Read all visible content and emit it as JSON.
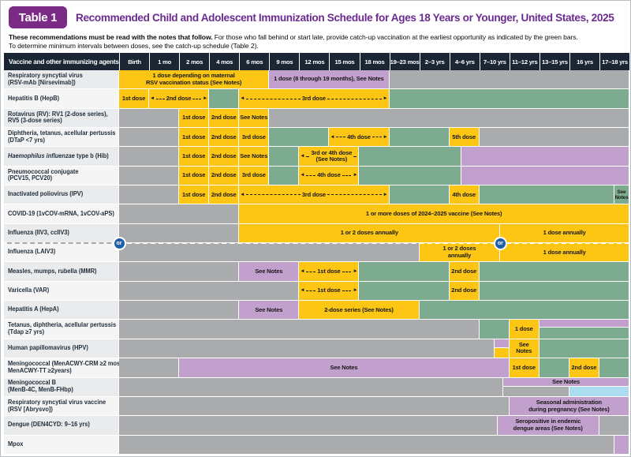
{
  "header": {
    "badge": "Table 1",
    "title": "Recommended Child and Adolescent Immunization Schedule for Ages 18 Years or Younger, United States, 2025"
  },
  "notes": {
    "line1_bold": "These recommendations must be read with the notes that follow.",
    "line1_rest": " For those who fall behind or start late, provide catch-up vaccination at the earliest opportunity as indicated by the green bars.",
    "line2": "To determine minimum intervals between doses, see the catch-up schedule (Table 2)."
  },
  "colors": {
    "yellow": "#FDC614",
    "green": "#7DAB8F",
    "purple": "#C2A0CD",
    "gray": "#A9ABAD",
    "blue": "#ABDCF1",
    "header_bg": "#1A2633",
    "badge_purple": "#7B2B85",
    "title_purple": "#6B2C91",
    "or_blue": "#1F5FA7"
  },
  "table": {
    "corner_header": "Vaccine and other immunizing agents",
    "age_columns": [
      "Birth",
      "1 mo",
      "2 mos",
      "4 mos",
      "6 mos",
      "9 mos",
      "12 mos",
      "15 mos",
      "18 mos",
      "19–23 mos",
      "2–3 yrs",
      "4–6 yrs",
      "7–10 yrs",
      "11–12 yrs",
      "13–15 yrs",
      "16 yrs",
      "17–18 yrs"
    ],
    "or_label": "or",
    "or_divider": {
      "after_row": 9,
      "circle_units": [
        0,
        12.7
      ]
    },
    "rows": [
      {
        "id": "rsv-mab",
        "label": [
          "Respiratory syncytial virus",
          "(RSV-mAb [Nirsevimab])"
        ],
        "segments": [
          {
            "s": 0,
            "e": 5,
            "c": "y",
            "label": "1 dose depending on maternal\nRSV vaccination status (See Notes)"
          },
          {
            "s": 5,
            "e": 9,
            "c": "p",
            "label": "1 dose (8 through 19 months), See Notes"
          },
          {
            "s": 9,
            "e": 17,
            "c": "g"
          }
        ]
      },
      {
        "id": "hepb",
        "label": [
          "Hepatitis B (HepB)"
        ],
        "segments": [
          {
            "s": 0,
            "e": 1,
            "c": "y",
            "label": "1st dose"
          },
          {
            "s": 1,
            "e": 3,
            "c": "y",
            "label": "2nd dose",
            "arrow": true
          },
          {
            "s": 3,
            "e": 4,
            "c": "t"
          },
          {
            "s": 4,
            "e": 9,
            "c": "y",
            "label": "3rd dose",
            "arrow": true
          },
          {
            "s": 9,
            "e": 17,
            "c": "t"
          }
        ]
      },
      {
        "id": "rotavirus",
        "label": [
          "Rotavirus (RV): RV1 (2-dose series),",
          "RV5 (3-dose series)"
        ],
        "segments": [
          {
            "s": 0,
            "e": 2,
            "c": "g"
          },
          {
            "s": 2,
            "e": 3,
            "c": "y",
            "label": "1st dose"
          },
          {
            "s": 3,
            "e": 4,
            "c": "y",
            "label": "2nd dose"
          },
          {
            "s": 4,
            "e": 5,
            "c": "y",
            "label": "See Notes"
          },
          {
            "s": 5,
            "e": 17,
            "c": "g"
          }
        ]
      },
      {
        "id": "dtap",
        "label": [
          "Diphtheria, tetanus, acellular pertussis",
          "(DTaP <7 yrs)"
        ],
        "segments": [
          {
            "s": 0,
            "e": 2,
            "c": "g"
          },
          {
            "s": 2,
            "e": 3,
            "c": "y",
            "label": "1st dose"
          },
          {
            "s": 3,
            "e": 4,
            "c": "y",
            "label": "2nd dose"
          },
          {
            "s": 4,
            "e": 5,
            "c": "y",
            "label": "3rd dose"
          },
          {
            "s": 5,
            "e": 7,
            "c": "t"
          },
          {
            "s": 7,
            "e": 9,
            "c": "y",
            "label": "4th dose",
            "arrow": true
          },
          {
            "s": 9,
            "e": 11,
            "c": "t"
          },
          {
            "s": 11,
            "e": 12,
            "c": "y",
            "label": "5th dose"
          },
          {
            "s": 12,
            "e": 17,
            "c": "g"
          }
        ]
      },
      {
        "id": "hib",
        "label": [
          {
            "italic": "Haemophilus influenzae",
            "text": " type b (Hib)"
          }
        ],
        "segments": [
          {
            "s": 0,
            "e": 2,
            "c": "g"
          },
          {
            "s": 2,
            "e": 3,
            "c": "y",
            "label": "1st dose"
          },
          {
            "s": 3,
            "e": 4,
            "c": "y",
            "label": "2nd dose"
          },
          {
            "s": 4,
            "e": 5,
            "c": "y",
            "label": "See Notes"
          },
          {
            "s": 5,
            "e": 6,
            "c": "t"
          },
          {
            "s": 6,
            "e": 8,
            "c": "y",
            "label": "3rd or 4th dose\n(See Notes)",
            "arrow": true
          },
          {
            "s": 8,
            "e": 11.4,
            "c": "t"
          },
          {
            "s": 11.4,
            "e": 17,
            "c": "p"
          }
        ]
      },
      {
        "id": "pcv",
        "label": [
          "Pneumococcal conjugate",
          "(PCV15, PCV20)"
        ],
        "segments": [
          {
            "s": 0,
            "e": 2,
            "c": "g"
          },
          {
            "s": 2,
            "e": 3,
            "c": "y",
            "label": "1st dose"
          },
          {
            "s": 3,
            "e": 4,
            "c": "y",
            "label": "2nd dose"
          },
          {
            "s": 4,
            "e": 5,
            "c": "y",
            "label": "3rd dose"
          },
          {
            "s": 5,
            "e": 6,
            "c": "t"
          },
          {
            "s": 6,
            "e": 8,
            "c": "y",
            "label": "4th dose",
            "arrow": true
          },
          {
            "s": 8,
            "e": 11.4,
            "c": "t"
          },
          {
            "s": 11.4,
            "e": 17,
            "c": "p"
          }
        ]
      },
      {
        "id": "ipv",
        "label": [
          "Inactivated poliovirus (IPV)"
        ],
        "segments": [
          {
            "s": 0,
            "e": 2,
            "c": "g"
          },
          {
            "s": 2,
            "e": 3,
            "c": "y",
            "label": "1st dose"
          },
          {
            "s": 3,
            "e": 4,
            "c": "y",
            "label": "2nd dose"
          },
          {
            "s": 4,
            "e": 9,
            "c": "y",
            "label": "3rd dose",
            "arrow": true
          },
          {
            "s": 9,
            "e": 11,
            "c": "t"
          },
          {
            "s": 11,
            "e": 12,
            "c": "y",
            "label": "4th dose"
          },
          {
            "s": 12,
            "e": 16.5,
            "c": "t"
          },
          {
            "s": 16.5,
            "e": 17,
            "c": "t",
            "label": "See\nNotes",
            "small": true
          }
        ]
      },
      {
        "id": "covid19",
        "label": [
          "COVID-19 (1vCOV-mRNA, 1vCOV-aPS)"
        ],
        "segments": [
          {
            "s": 0,
            "e": 4,
            "c": "g"
          },
          {
            "s": 4,
            "e": 17,
            "c": "y",
            "label": "1 or more doses of 2024–2025 vaccine (See Notes)"
          }
        ]
      },
      {
        "id": "influenza-iiv3",
        "label": [
          "Influenza (IIV3, ccIIV3)"
        ],
        "segments": [
          {
            "s": 0,
            "e": 4,
            "c": "g"
          },
          {
            "s": 4,
            "e": 12.7,
            "c": "y",
            "label": "1 or 2 doses annually"
          },
          {
            "s": 12.7,
            "e": 17,
            "c": "y",
            "label": "1 dose annually"
          }
        ]
      },
      {
        "id": "influenza-laiv3",
        "label": [
          "Influenza (LAIV3)"
        ],
        "segments": [
          {
            "s": 0,
            "e": 10,
            "c": "g"
          },
          {
            "s": 10,
            "e": 12.7,
            "c": "y",
            "label": "1 or 2 doses\nannually"
          },
          {
            "s": 12.7,
            "e": 17,
            "c": "y",
            "label": "1 dose annually"
          }
        ]
      },
      {
        "id": "mmr",
        "label": [
          "Measles, mumps, rubella (MMR)"
        ],
        "segments": [
          {
            "s": 0,
            "e": 4,
            "c": "g"
          },
          {
            "s": 4,
            "e": 6,
            "c": "p",
            "label": "See Notes"
          },
          {
            "s": 6,
            "e": 8,
            "c": "y",
            "label": "1st dose",
            "arrow": true
          },
          {
            "s": 8,
            "e": 11,
            "c": "t"
          },
          {
            "s": 11,
            "e": 12,
            "c": "y",
            "label": "2nd dose"
          },
          {
            "s": 12,
            "e": 17,
            "c": "t"
          }
        ]
      },
      {
        "id": "varicella",
        "label": [
          "Varicella (VAR)"
        ],
        "segments": [
          {
            "s": 0,
            "e": 6,
            "c": "g"
          },
          {
            "s": 6,
            "e": 8,
            "c": "y",
            "label": "1st dose",
            "arrow": true
          },
          {
            "s": 8,
            "e": 11,
            "c": "t"
          },
          {
            "s": 11,
            "e": 12,
            "c": "y",
            "label": "2nd dose"
          },
          {
            "s": 12,
            "e": 17,
            "c": "t"
          }
        ]
      },
      {
        "id": "hepa",
        "label": [
          "Hepatitis A (HepA)"
        ],
        "segments": [
          {
            "s": 0,
            "e": 4,
            "c": "g"
          },
          {
            "s": 4,
            "e": 6,
            "c": "p",
            "label": "See Notes"
          },
          {
            "s": 6,
            "e": 10,
            "c": "y",
            "label": "2-dose series (See Notes)"
          },
          {
            "s": 10,
            "e": 17,
            "c": "t"
          }
        ]
      },
      {
        "id": "tdap",
        "label": [
          "Tetanus, diphtheria, acellular pertussis",
          "(Tdap ≥7 yrs)"
        ],
        "segments": [
          {
            "s": 0,
            "e": 12,
            "c": "g"
          },
          {
            "s": 12,
            "e": 13,
            "c": "t"
          },
          {
            "s": 13,
            "e": 14,
            "c": "y",
            "label": "1 dose"
          },
          {
            "s": 14,
            "e": 17,
            "c": "p",
            "top": 0,
            "h": 0.42
          },
          {
            "s": 14,
            "e": 17,
            "c": "t",
            "top": 0.42,
            "h": 0.58
          }
        ]
      },
      {
        "id": "hpv",
        "label": [
          "Human papillomavirus (HPV)"
        ],
        "segments": [
          {
            "s": 0,
            "e": 12.5,
            "c": "g"
          },
          {
            "s": 12.5,
            "e": 13,
            "c": "p",
            "top": 0,
            "h": 0.5
          },
          {
            "s": 12.5,
            "e": 13,
            "c": "chk",
            "top": 0.5,
            "h": 0.5
          },
          {
            "s": 13,
            "e": 14,
            "c": "y",
            "label": "See\nNotes"
          },
          {
            "s": 14,
            "e": 17,
            "c": "t"
          }
        ]
      },
      {
        "id": "menacwy",
        "label": [
          "Meningococcal (MenACWY-CRM ≥2 mos,",
          "MenACWY-TT ≥2years)"
        ],
        "segments": [
          {
            "s": 0,
            "e": 2,
            "c": "g"
          },
          {
            "s": 2,
            "e": 13,
            "c": "p",
            "label": "See Notes"
          },
          {
            "s": 13,
            "e": 14,
            "c": "y",
            "label": "1st dose"
          },
          {
            "s": 14,
            "e": 15,
            "c": "t"
          },
          {
            "s": 15,
            "e": 16,
            "c": "y",
            "label": "2nd dose"
          },
          {
            "s": 16,
            "e": 17,
            "c": "t"
          }
        ]
      },
      {
        "id": "menb",
        "label": [
          "Meningococcal B",
          "(MenB-4C, MenB-FHbp)"
        ],
        "segments": [
          {
            "s": 0,
            "e": 12.8,
            "c": "g"
          },
          {
            "s": 12.8,
            "e": 17,
            "c": "p",
            "label": "See Notes",
            "top": 0,
            "h": 0.5
          },
          {
            "s": 12.8,
            "e": 15,
            "c": "g",
            "top": 0.5,
            "h": 0.5
          },
          {
            "s": 15,
            "e": 17,
            "c": "b",
            "top": 0.5,
            "h": 0.5
          }
        ]
      },
      {
        "id": "rsv-vaccine",
        "label": [
          "Respiratory syncytial virus vaccine",
          "(RSV [Abrysvo])"
        ],
        "segments": [
          {
            "s": 0,
            "e": 13,
            "c": "g"
          },
          {
            "s": 13,
            "e": 17,
            "c": "p",
            "label": "Seasonal administration\nduring pregnancy (See Notes)"
          }
        ]
      },
      {
        "id": "dengue",
        "label": [
          "Dengue (DEN4CYD: 9–16 yrs)"
        ],
        "segments": [
          {
            "s": 0,
            "e": 12.6,
            "c": "g"
          },
          {
            "s": 12.6,
            "e": 16,
            "c": "p",
            "label": "Seropositive in endemic\ndengue areas (See Notes)"
          },
          {
            "s": 16,
            "e": 17,
            "c": "g"
          }
        ]
      },
      {
        "id": "mpox",
        "label": [
          "Mpox"
        ],
        "segments": [
          {
            "s": 0,
            "e": 16.5,
            "c": "g"
          },
          {
            "s": 16.5,
            "e": 17,
            "c": "p"
          }
        ]
      }
    ]
  }
}
